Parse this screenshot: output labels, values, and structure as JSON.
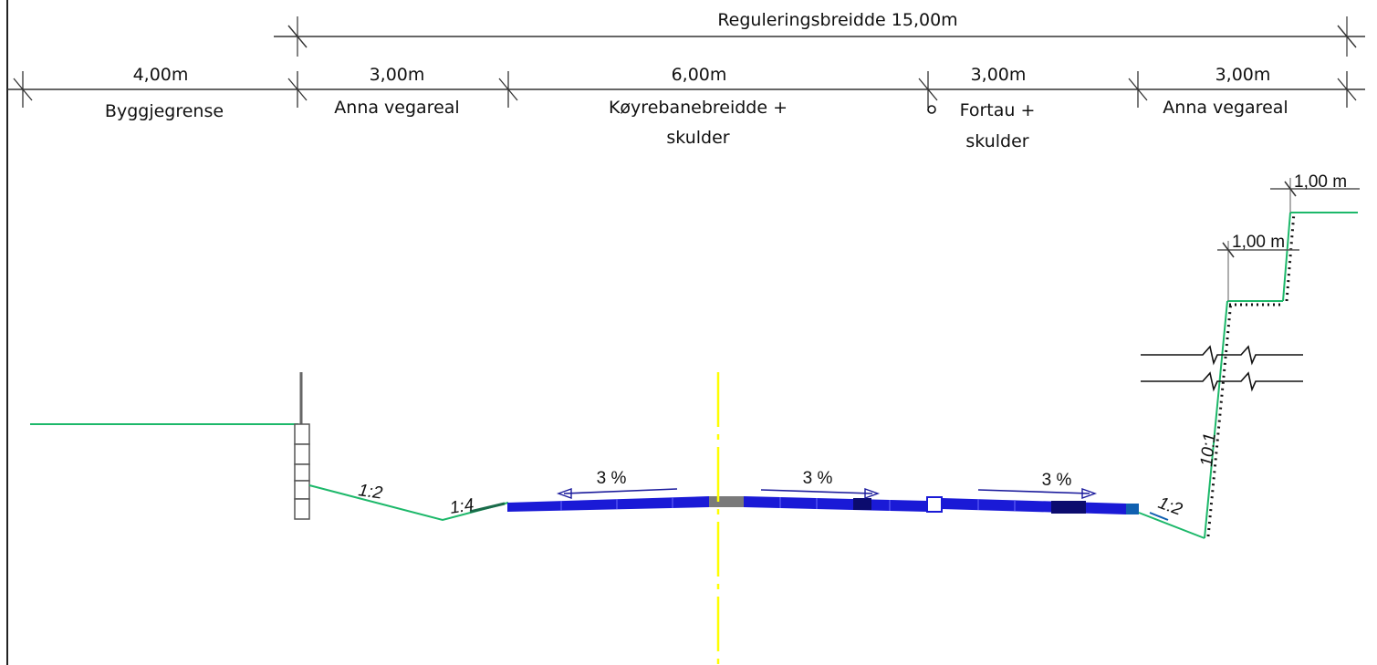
{
  "overall": {
    "label": "Reguleringsbreidde 15,00m"
  },
  "segments": [
    {
      "width": "4,00m",
      "lines": [
        "Byggjegrense"
      ]
    },
    {
      "width": "3,00m",
      "lines": [
        "Anna vegareal"
      ]
    },
    {
      "width": "6,00m",
      "lines": [
        "Køyrebanebreidde +",
        "skulder"
      ]
    },
    {
      "width": "3,00m",
      "lines": [
        "Fortau +",
        "skulder"
      ]
    },
    {
      "width": "3,00m",
      "lines": [
        "Anna vegareal"
      ]
    }
  ],
  "slopes": {
    "left_outer": "1:2",
    "left_inner": "1:4",
    "right_outer": "1:2",
    "rock_cut": "10:1"
  },
  "crossfall": {
    "left_lane": "3 %",
    "right_lane": "3 %",
    "sidewalk": "3 %"
  },
  "benches": {
    "upper": "1,00 m",
    "lower": "1,00 m"
  },
  "colors": {
    "terrain": "#1db86a",
    "asphalt": "#1a1ad6",
    "centerline": "#ffff00",
    "dimension": "#333333"
  }
}
